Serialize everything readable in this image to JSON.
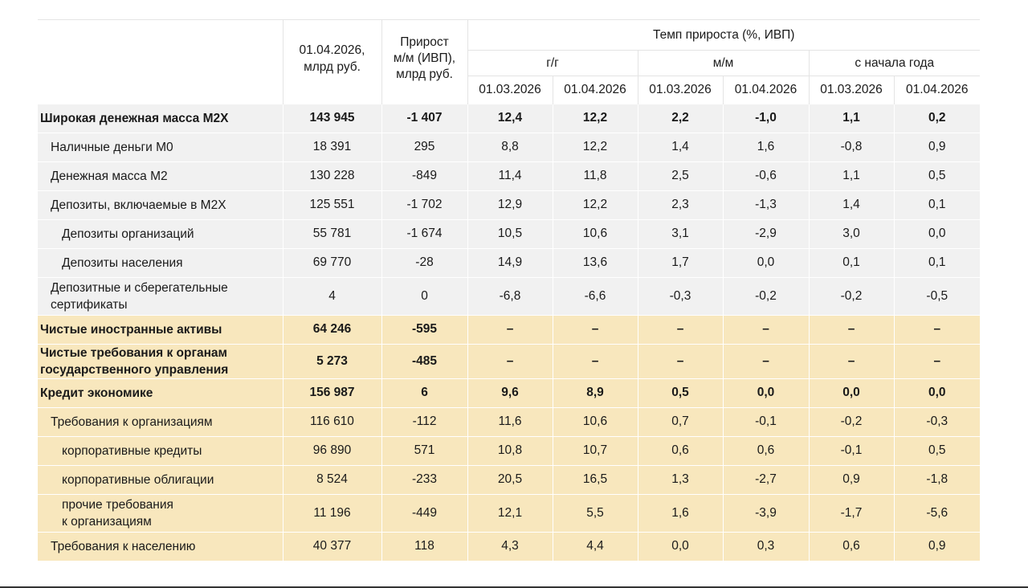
{
  "header": {
    "col_value": "01.04.2026,\nмлрд руб.",
    "col_growth": "Прирост\nм/м (ИВП),\nмлрд руб.",
    "group_title": "Темп прироста (%, ИВП)",
    "sub_yy": "г/г",
    "sub_mm": "м/м",
    "sub_ytd": "с начала года",
    "dates": [
      "01.03.2026",
      "01.04.2026",
      "01.03.2026",
      "01.04.2026",
      "01.03.2026",
      "01.04.2026"
    ]
  },
  "rows": [
    {
      "label": "Широкая денежная масса М2Х",
      "value": "143 945",
      "growth": "-1 407",
      "c": [
        "12,4",
        "12,2",
        "2,2",
        "-1,0",
        "1,1",
        "0,2"
      ]
    },
    {
      "label": "Наличные деньги М0",
      "value": "18 391",
      "growth": "295",
      "c": [
        "8,8",
        "12,2",
        "1,4",
        "1,6",
        "-0,8",
        "0,9"
      ]
    },
    {
      "label": "Денежная масса М2",
      "value": "130 228",
      "growth": "-849",
      "c": [
        "11,4",
        "11,8",
        "2,5",
        "-0,6",
        "1,1",
        "0,5"
      ]
    },
    {
      "label": "Депозиты, включаемые в М2Х",
      "value": "125 551",
      "growth": "-1 702",
      "c": [
        "12,9",
        "12,2",
        "2,3",
        "-1,3",
        "1,4",
        "0,1"
      ]
    },
    {
      "label": "Депозиты организаций",
      "value": "55 781",
      "growth": "-1 674",
      "c": [
        "10,5",
        "10,6",
        "3,1",
        "-2,9",
        "3,0",
        "0,0"
      ]
    },
    {
      "label": "Депозиты населения",
      "value": "69 770",
      "growth": "-28",
      "c": [
        "14,9",
        "13,6",
        "1,7",
        "0,0",
        "0,1",
        "0,1"
      ]
    },
    {
      "label": "Депозитные и сберегательные\nсертификаты",
      "value": "4",
      "growth": "0",
      "c": [
        "-6,8",
        "-6,6",
        "-0,3",
        "-0,2",
        "-0,2",
        "-0,5"
      ]
    },
    {
      "label": "Чистые иностранные активы",
      "value": "64 246",
      "growth": "-595",
      "c": [
        "–",
        "–",
        "–",
        "–",
        "–",
        "–"
      ]
    },
    {
      "label": "Чистые требования к органам\nгосударственного управления",
      "value": "5 273",
      "growth": "-485",
      "c": [
        "–",
        "–",
        "–",
        "–",
        "–",
        "–"
      ]
    },
    {
      "label": "Кредит экономике",
      "value": "156 987",
      "growth": "6",
      "c": [
        "9,6",
        "8,9",
        "0,5",
        "0,0",
        "0,0",
        "0,0"
      ]
    },
    {
      "label": "Требования к организациям",
      "value": "116 610",
      "growth": "-112",
      "c": [
        "11,6",
        "10,6",
        "0,7",
        "-0,1",
        "-0,2",
        "-0,3"
      ]
    },
    {
      "label": "корпоративные кредиты",
      "value": "96 890",
      "growth": "571",
      "c": [
        "10,8",
        "10,7",
        "0,6",
        "0,6",
        "-0,1",
        "0,5"
      ]
    },
    {
      "label": "корпоративные облигации",
      "value": "8 524",
      "growth": "-233",
      "c": [
        "20,5",
        "16,5",
        "1,3",
        "-2,7",
        "0,9",
        "-1,8"
      ]
    },
    {
      "label": "прочие требования\nк организациям",
      "value": "11 196",
      "growth": "-449",
      "c": [
        "12,1",
        "5,5",
        "1,6",
        "-3,9",
        "-1,7",
        "-5,6"
      ]
    },
    {
      "label": "Требования к населению",
      "value": "40 377",
      "growth": "118",
      "c": [
        "4,3",
        "4,4",
        "0,0",
        "0,3",
        "0,6",
        "0,9"
      ]
    }
  ]
}
